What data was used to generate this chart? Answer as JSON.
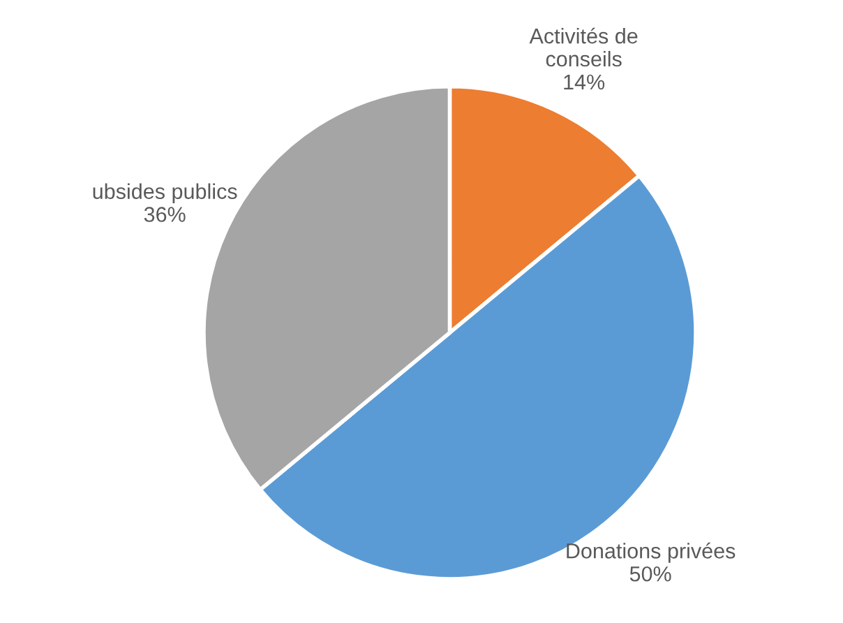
{
  "chart_data": {
    "type": "pie",
    "categories": [
      "Activités de\nconseils",
      "Donations privées",
      "ubsides publics"
    ],
    "values": [
      14,
      50,
      36
    ],
    "colors": [
      "#ed7d31",
      "#5b9bd5",
      "#a5a5a5"
    ],
    "value_labels": [
      "14%",
      "50%",
      "36%"
    ]
  }
}
